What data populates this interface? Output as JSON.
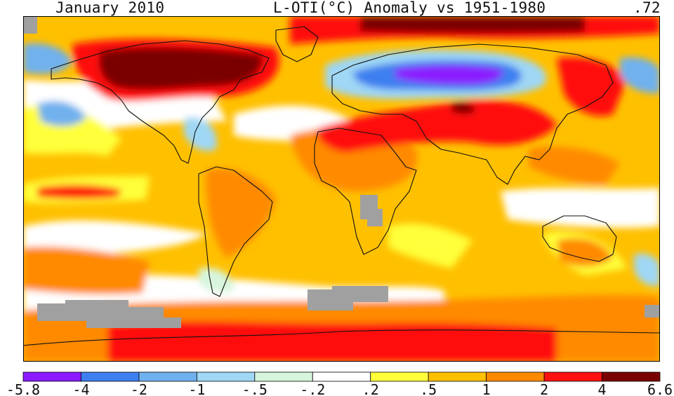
{
  "header": {
    "date": "January 2010",
    "title": "L-OTI(°C) Anomaly vs 1951-1980",
    "global_mean": ".72"
  },
  "legend": {
    "levels": [
      "-5.8",
      "-4",
      "-2",
      "-1",
      "-.5",
      "-.2",
      ".2",
      ".5",
      "1",
      "2",
      "4",
      "6.6"
    ],
    "colors": [
      "#8b1aff",
      "#3d7ff0",
      "#6fb1ee",
      "#9fd7f5",
      "#d6f5dc",
      "#ffffff",
      "#ffff3a",
      "#ffc000",
      "#ff8a00",
      "#ff1010",
      "#7a0000"
    ],
    "missing_color": "#a0a0a0"
  }
}
